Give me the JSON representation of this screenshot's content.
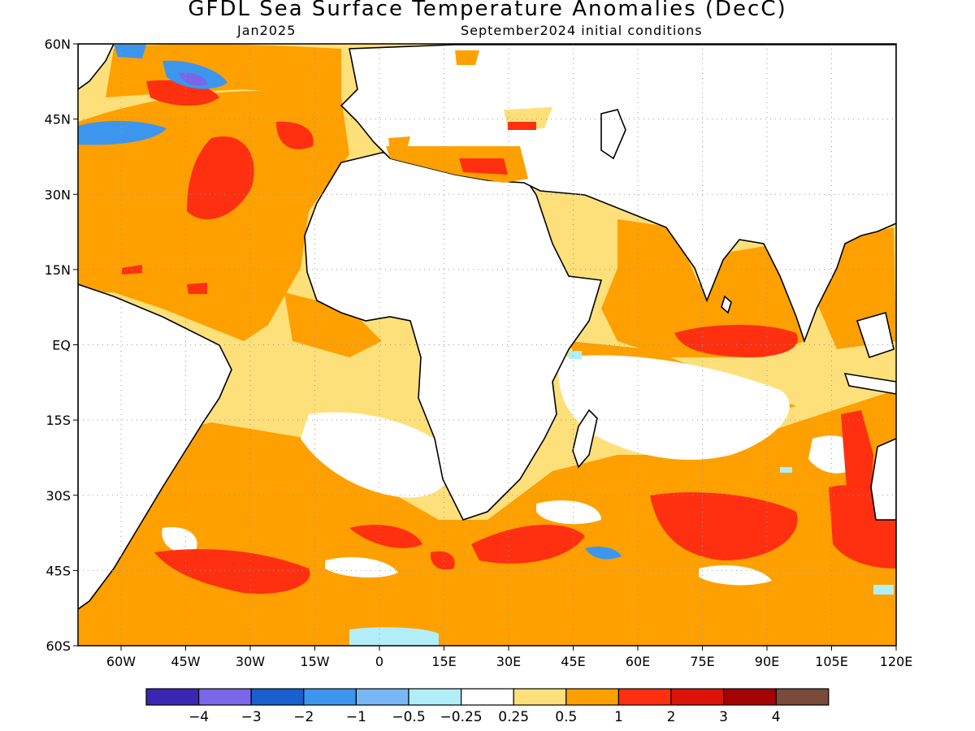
{
  "title": "GFDL Sea Surface Temperature Anomalies (DecC)",
  "subtitle_left": "Jan2025",
  "subtitle_right": "September2024 initial conditions",
  "map": {
    "lon_range": [
      -70,
      120
    ],
    "lat_range": [
      -60,
      60
    ],
    "lat_ticks": [
      "60N",
      "45N",
      "30N",
      "15N",
      "EQ",
      "15S",
      "30S",
      "45S",
      "60S"
    ],
    "lon_ticks": [
      "60W",
      "45W",
      "30W",
      "15W",
      "0",
      "15E",
      "30E",
      "45E",
      "60E",
      "75E",
      "90E",
      "105E",
      "120E"
    ],
    "land_color": "#ffffff",
    "grid": "dotted"
  },
  "colorbar": {
    "colors": [
      "#3a26b4",
      "#7a66e8",
      "#1860d0",
      "#3c96ee",
      "#78b6f6",
      "#b2eef8",
      "#ffffff",
      "#fee07a",
      "#fea000",
      "#fe3010",
      "#dc1408",
      "#a40404",
      "#7a4a3a"
    ],
    "labels": [
      "−4",
      "−3",
      "−2",
      "−1",
      "−0.5",
      "−0.25",
      "0.25",
      "0.5",
      "1",
      "2",
      "3",
      "4"
    ]
  }
}
